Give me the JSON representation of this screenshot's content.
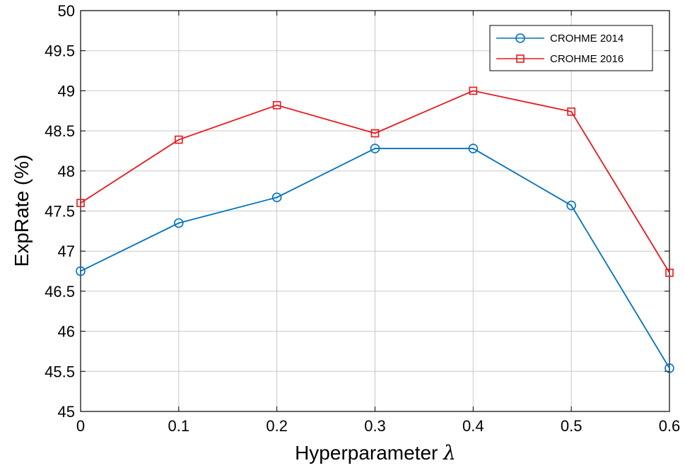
{
  "chart_data": {
    "type": "line",
    "title": "",
    "xlabel": "Hyperparameter",
    "xlabel_symbol": "λ",
    "ylabel": "ExpRate (%)",
    "x": [
      0,
      0.1,
      0.2,
      0.3,
      0.4,
      0.5,
      0.6
    ],
    "xlim": [
      0,
      0.6
    ],
    "ylim": [
      45,
      50
    ],
    "xticks": [
      "0",
      "0.1",
      "0.2",
      "0.3",
      "0.4",
      "0.5",
      "0.6"
    ],
    "yticks": [
      "45",
      "45.5",
      "46",
      "46.5",
      "47",
      "47.5",
      "48",
      "48.5",
      "49",
      "49.5",
      "50"
    ],
    "grid": true,
    "legend_position": "top-right",
    "series": [
      {
        "name": "CROHME 2014",
        "color": "#0072BD",
        "marker": "circle",
        "values": [
          46.75,
          47.35,
          47.67,
          48.28,
          48.28,
          47.57,
          45.54
        ]
      },
      {
        "name": "CROHME 2016",
        "color": "#E8181C",
        "marker": "square",
        "values": [
          47.6,
          48.39,
          48.82,
          48.47,
          49.0,
          48.74,
          46.73
        ]
      }
    ]
  }
}
